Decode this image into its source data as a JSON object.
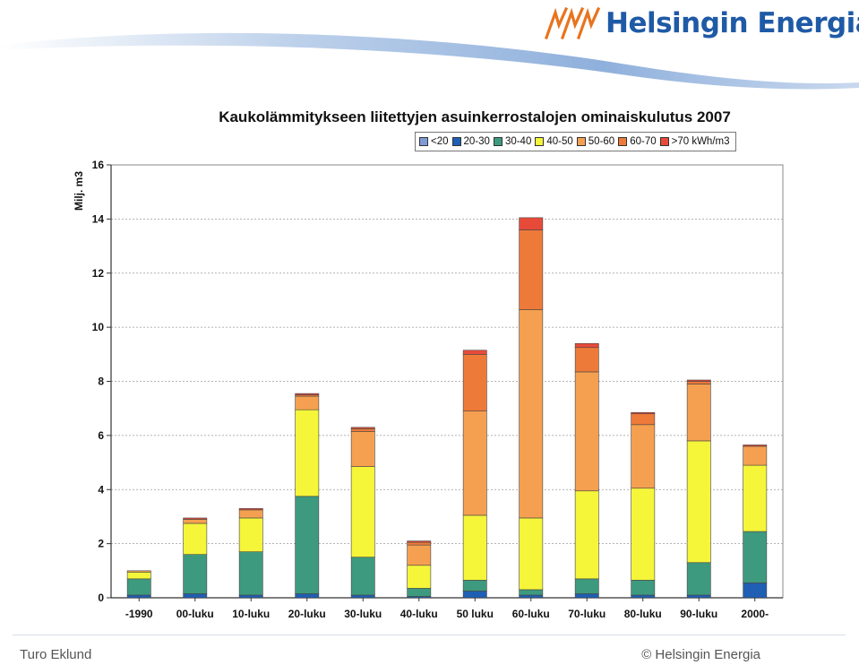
{
  "header": {
    "logo_text": "Helsingin Energia",
    "logo_icon": "flame-arrows-icon",
    "brand_color": "#1f5aa6",
    "logo_mark_color": "#e8741e"
  },
  "footer": {
    "author": "Turo Eklund",
    "copyright": "© Helsingin Energia"
  },
  "chart_data": {
    "type": "bar",
    "stacked": true,
    "title": "Kaukolämmitykseen liitettyjen asuinkerrostalojen ominaiskulutus 2007",
    "ylabel": "Milj. m3",
    "xlabel": "",
    "ylim": [
      0,
      16
    ],
    "yticks": [
      0,
      2,
      4,
      6,
      8,
      10,
      12,
      14,
      16
    ],
    "grid": true,
    "legend_position": "top-right",
    "categories": [
      "-1990",
      "00-luku",
      "10-luku",
      "20-luku",
      "30-luku",
      "40-luku",
      "50 luku",
      "60-luku",
      "70-luku",
      "80-luku",
      "90-luku",
      "2000-"
    ],
    "series": [
      {
        "name": "<20",
        "color": "#7f9bd6",
        "values": [
          0,
          0,
          0,
          0,
          0,
          0,
          0,
          0,
          0,
          0,
          0,
          0
        ]
      },
      {
        "name": "20-30",
        "color": "#1f5fb4",
        "values": [
          0.1,
          0.15,
          0.1,
          0.15,
          0.1,
          0.05,
          0.25,
          0.1,
          0.15,
          0.1,
          0.1,
          0.55
        ]
      },
      {
        "name": "30-40",
        "color": "#3e9a7f",
        "values": [
          0.6,
          1.45,
          1.6,
          3.6,
          1.4,
          0.3,
          0.4,
          0.2,
          0.55,
          0.55,
          1.2,
          1.9
        ]
      },
      {
        "name": "40-50",
        "color": "#f5f53a",
        "values": [
          0.25,
          1.15,
          1.25,
          3.2,
          3.35,
          0.85,
          2.4,
          2.65,
          3.25,
          3.4,
          4.5,
          2.45
        ]
      },
      {
        "name": "50-60",
        "color": "#f5a050",
        "values": [
          0.05,
          0.15,
          0.3,
          0.5,
          1.3,
          0.75,
          3.85,
          7.7,
          4.4,
          2.35,
          2.1,
          0.7
        ]
      },
      {
        "name": "60-70",
        "color": "#ee7a3a",
        "values": [
          0,
          0,
          0,
          0.05,
          0.1,
          0.1,
          2.1,
          2.95,
          0.9,
          0.4,
          0.1,
          0
        ]
      },
      {
        "name": ">70 kWh/m3",
        "color": "#e84a3a",
        "values": [
          0,
          0.05,
          0.05,
          0.05,
          0.05,
          0.05,
          0.15,
          0.45,
          0.15,
          0.05,
          0.05,
          0.05
        ]
      }
    ]
  }
}
